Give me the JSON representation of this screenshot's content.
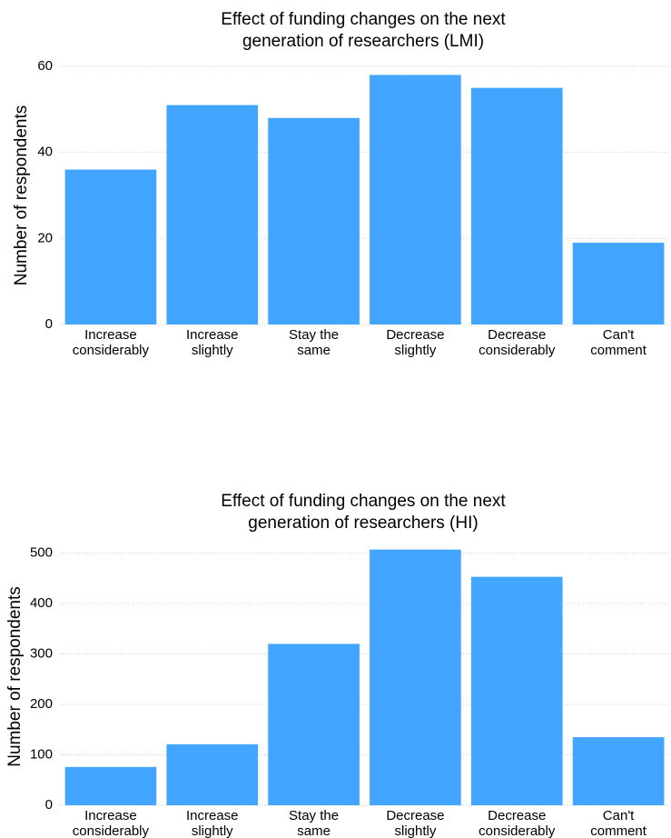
{
  "chart_data": [
    {
      "type": "bar",
      "title": [
        "Effect of funding changes on the next",
        "generation of researchers (LMI)"
      ],
      "y_label": "Number of respondents",
      "categories": [
        [
          "Increase",
          "considerably"
        ],
        [
          "Increase",
          "slightly"
        ],
        [
          "Stay the",
          "same"
        ],
        [
          "Decrease",
          "slightly"
        ],
        [
          "Decrease",
          "considerably"
        ],
        [
          "Can't",
          "comment"
        ]
      ],
      "values": [
        36,
        51,
        48,
        58,
        55,
        19
      ],
      "color": "#42a5ff",
      "ylim": [
        0,
        60
      ],
      "yticks": [
        0,
        20,
        40,
        60
      ],
      "grid": true
    },
    {
      "type": "bar",
      "title": [
        "Effect of funding changes on the next",
        "generation of researchers (HI)"
      ],
      "y_label": "Number of respondents",
      "categories": [
        [
          "Increase",
          "considerably"
        ],
        [
          "Increase",
          "slightly"
        ],
        [
          "Stay the",
          "same"
        ],
        [
          "Decrease",
          "slightly"
        ],
        [
          "Decrease",
          "considerably"
        ],
        [
          "Can't",
          "comment"
        ]
      ],
      "values": [
        76,
        121,
        320,
        507,
        453,
        135
      ],
      "color": "#42a5ff",
      "ylim": [
        0,
        510
      ],
      "yticks": [
        0,
        100,
        200,
        300,
        400,
        500
      ],
      "grid": true
    }
  ]
}
